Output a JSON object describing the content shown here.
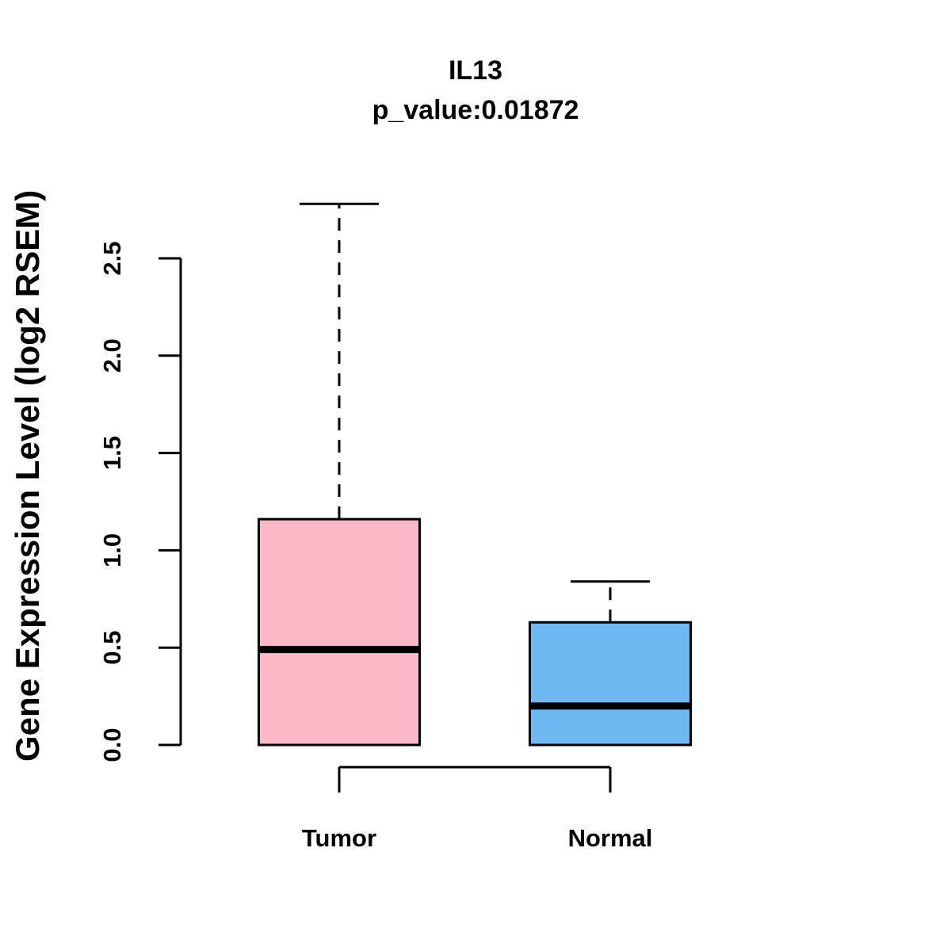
{
  "chart_data": {
    "type": "boxplot",
    "title": "IL13",
    "subtitle": "p_value:0.01872",
    "ylabel": "Gene Expression Level (log2 RSEM)",
    "ytick_labels": [
      "0.0",
      "0.5",
      "1.0",
      "1.5",
      "2.0",
      "2.5"
    ],
    "ytick_values": [
      0,
      0.5,
      1.0,
      1.5,
      2.0,
      2.5
    ],
    "ylim": [
      0,
      2.9
    ],
    "grid": false,
    "legend": "none",
    "axis_color": "#000000",
    "groups": [
      {
        "label": "Tumor",
        "color": "#F9B9C7",
        "stats": {
          "min": 0.0,
          "q1": 0.0,
          "median": 0.49,
          "q3": 1.16,
          "max": 2.78
        }
      },
      {
        "label": "Normal",
        "color": "#6FB9F2",
        "stats": {
          "min": 0.0,
          "q1": 0.0,
          "median": 0.2,
          "q3": 0.63,
          "max": 0.84
        }
      }
    ]
  }
}
